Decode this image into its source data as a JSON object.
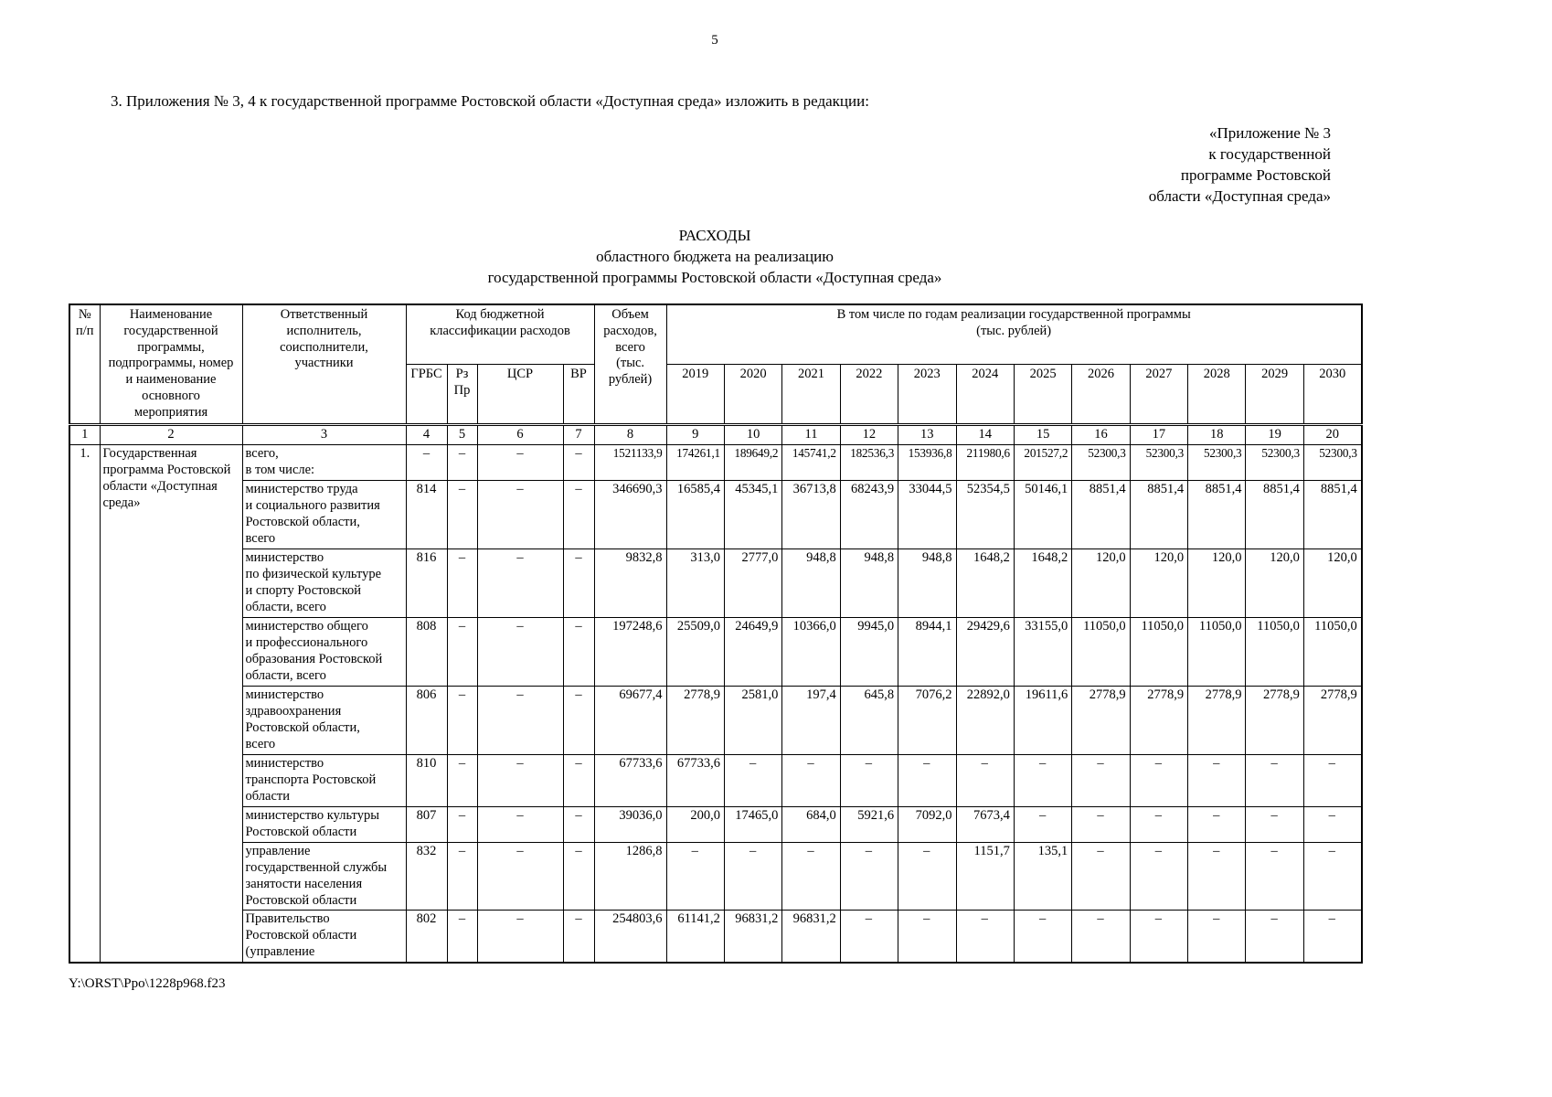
{
  "page": {
    "number": "5",
    "intro": "3. Приложения № 3, 4 к государственной программе Ростовской области «Доступная среда» изложить в редакции:",
    "annex_lines": [
      "«Приложение № 3",
      "к государственной",
      "программе Ростовской",
      "области «Доступная среда»"
    ],
    "title_lines": [
      "РАСХОДЫ",
      "областного бюджета на реализацию",
      "государственной программы Ростовской области «Доступная среда»"
    ],
    "footer_path": "Y:\\ORST\\Ppo\\1228p968.f23"
  },
  "table": {
    "header": {
      "num": "№\nп/п",
      "name": "Наименование\nгосударственной\nпрограммы,\nподпрограммы, номер\nи наименование\nосновного\nмероприятия",
      "executor": "Ответственный\nисполнитель,\nсоисполнители,\nучастники",
      "budget_code": "Код бюджетной\nклассификации расходов",
      "grbs": "ГРБС",
      "rzpr": "Рз\nПр",
      "csr": "ЦСР",
      "vr": "ВР",
      "total": "Объем\nрасходов,\nвсего\n(тыс.\nрублей)",
      "years_group": "В том числе по годам реализации государственной программы\n(тыс. рублей)",
      "years": [
        "2019",
        "2020",
        "2021",
        "2022",
        "2023",
        "2024",
        "2025",
        "2026",
        "2027",
        "2028",
        "2029",
        "2030"
      ],
      "col_numbers": [
        "1",
        "2",
        "3",
        "4",
        "5",
        "6",
        "7",
        "8",
        "9",
        "10",
        "11",
        "12",
        "13",
        "14",
        "15",
        "16",
        "17",
        "18",
        "19",
        "20"
      ]
    },
    "row_group": {
      "number": "1.",
      "program": "Государственная\nпрограмма Ростовской\nобласти «Доступная\nсреда»"
    },
    "rows": [
      {
        "executor": "всего,\nв том числе:",
        "grbs": "–",
        "rz_pr": "–",
        "csr": "–",
        "vr": "–",
        "total": "1521133,9",
        "years": [
          "174261,1",
          "189649,2",
          "145741,2",
          "182536,3",
          "153936,8",
          "211980,6",
          "201527,2",
          "52300,3",
          "52300,3",
          "52300,3",
          "52300,3",
          "52300,3"
        ]
      },
      {
        "executor": "министерство труда\nи социального развития\nРостовской области,\nвсего",
        "grbs": "814",
        "rz_pr": "–",
        "csr": "–",
        "vr": "–",
        "total": "346690,3",
        "years": [
          "16585,4",
          "45345,1",
          "36713,8",
          "68243,9",
          "33044,5",
          "52354,5",
          "50146,1",
          "8851,4",
          "8851,4",
          "8851,4",
          "8851,4",
          "8851,4"
        ]
      },
      {
        "executor": "министерство\nпо физической культуре\nи спорту Ростовской\nобласти, всего",
        "grbs": "816",
        "rz_pr": "–",
        "csr": "–",
        "vr": "–",
        "total": "9832,8",
        "years": [
          "313,0",
          "2777,0",
          "948,8",
          "948,8",
          "948,8",
          "1648,2",
          "1648,2",
          "120,0",
          "120,0",
          "120,0",
          "120,0",
          "120,0"
        ]
      },
      {
        "executor": "министерство общего\nи профессионального\nобразования Ростовской\nобласти, всего",
        "grbs": "808",
        "rz_pr": "–",
        "csr": "–",
        "vr": "–",
        "total": "197248,6",
        "years": [
          "25509,0",
          "24649,9",
          "10366,0",
          "9945,0",
          "8944,1",
          "29429,6",
          "33155,0",
          "11050,0",
          "11050,0",
          "11050,0",
          "11050,0",
          "11050,0"
        ]
      },
      {
        "executor": "министерство\nздравоохранения\nРостовской области,\nвсего",
        "grbs": "806",
        "rz_pr": "–",
        "csr": "–",
        "vr": "–",
        "total": "69677,4",
        "years": [
          "2778,9",
          "2581,0",
          "197,4",
          "645,8",
          "7076,2",
          "22892,0",
          "19611,6",
          "2778,9",
          "2778,9",
          "2778,9",
          "2778,9",
          "2778,9"
        ]
      },
      {
        "executor": "министерство\nтранспорта Ростовской\nобласти",
        "grbs": "810",
        "rz_pr": "–",
        "csr": "–",
        "vr": "–",
        "total": "67733,6",
        "years": [
          "67733,6",
          "–",
          "–",
          "–",
          "–",
          "–",
          "–",
          "–",
          "–",
          "–",
          "–",
          "–"
        ]
      },
      {
        "executor": "министерство культуры\nРостовской области",
        "grbs": "807",
        "rz_pr": "–",
        "csr": "–",
        "vr": "–",
        "total": "39036,0",
        "years": [
          "200,0",
          "17465,0",
          "684,0",
          "5921,6",
          "7092,0",
          "7673,4",
          "–",
          "–",
          "–",
          "–",
          "–",
          "–"
        ]
      },
      {
        "executor": "управление\nгосударственной службы\nзанятости населения\nРостовской области",
        "grbs": "832",
        "rz_pr": "–",
        "csr": "–",
        "vr": "–",
        "total": "1286,8",
        "years": [
          "–",
          "–",
          "–",
          "–",
          "–",
          "1151,7",
          "135,1",
          "–",
          "–",
          "–",
          "–",
          "–"
        ]
      },
      {
        "executor": "Правительство\nРостовской области\n(управление",
        "grbs": "802",
        "rz_pr": "–",
        "csr": "–",
        "vr": "–",
        "total": "254803,6",
        "years": [
          "61141,2",
          "96831,2",
          "96831,2",
          "–",
          "–",
          "–",
          "–",
          "–",
          "–",
          "–",
          "–",
          "–"
        ]
      }
    ]
  }
}
